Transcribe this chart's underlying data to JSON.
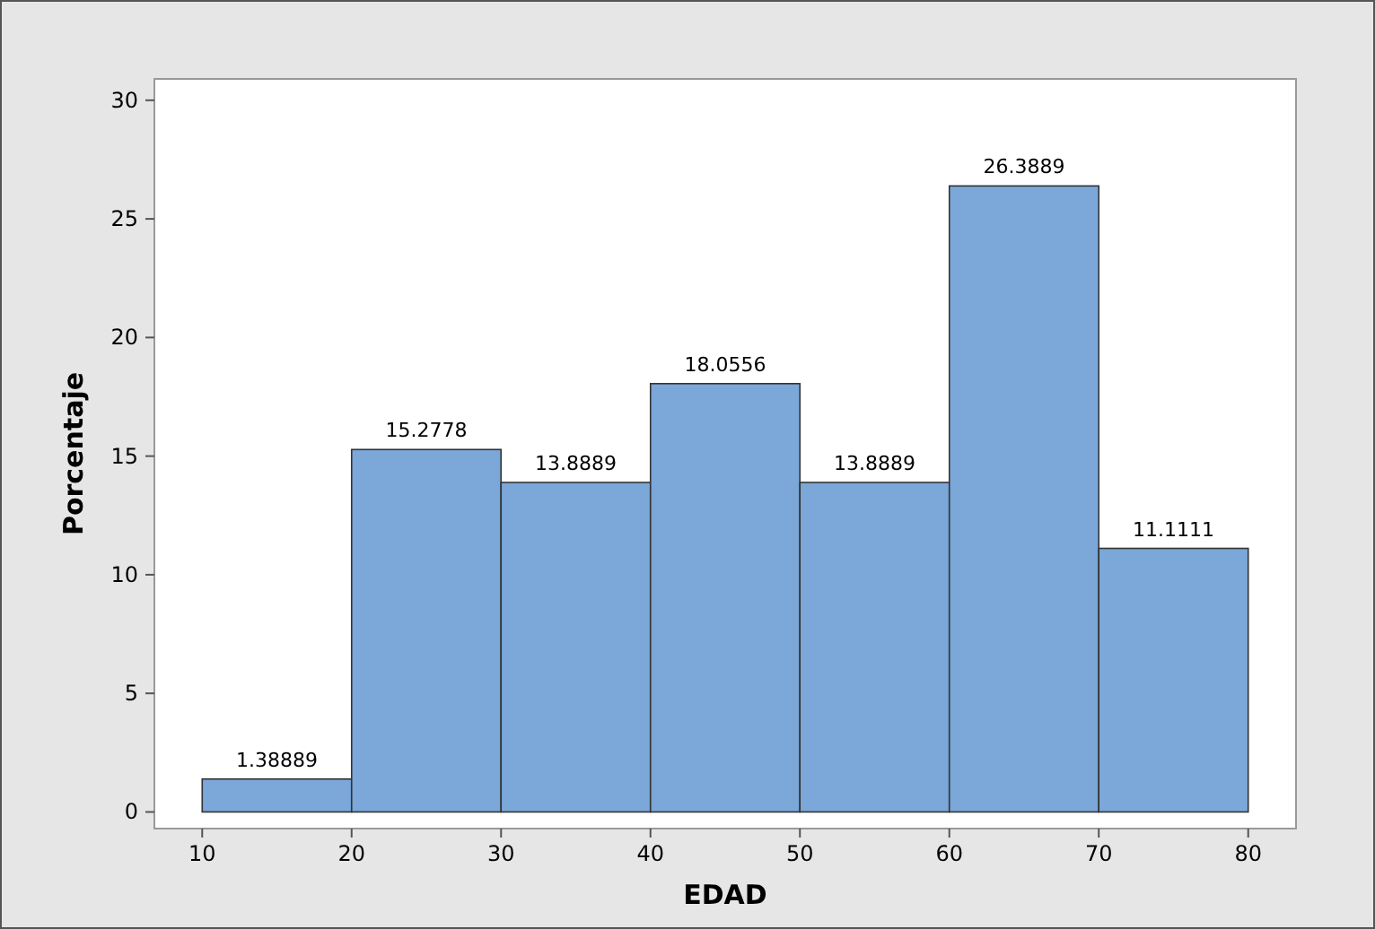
{
  "chart_data": {
    "type": "histogram",
    "xlabel": "EDAD",
    "ylabel": "Porcentaje",
    "bins": [
      10,
      20,
      30,
      40,
      50,
      60,
      70,
      80
    ],
    "values": [
      1.38889,
      15.2778,
      13.8889,
      18.0556,
      13.8889,
      26.3889,
      11.1111
    ],
    "color": "#7ba7d9",
    "data_labels": true,
    "xlim": [
      6.8,
      83.2
    ],
    "xticks": [
      10,
      20,
      30,
      40,
      50,
      60,
      70,
      80
    ],
    "ylim": [
      -0.7,
      30.9
    ],
    "yticks": [
      0,
      5,
      10,
      15,
      20,
      25,
      30
    ],
    "grid": false
  }
}
